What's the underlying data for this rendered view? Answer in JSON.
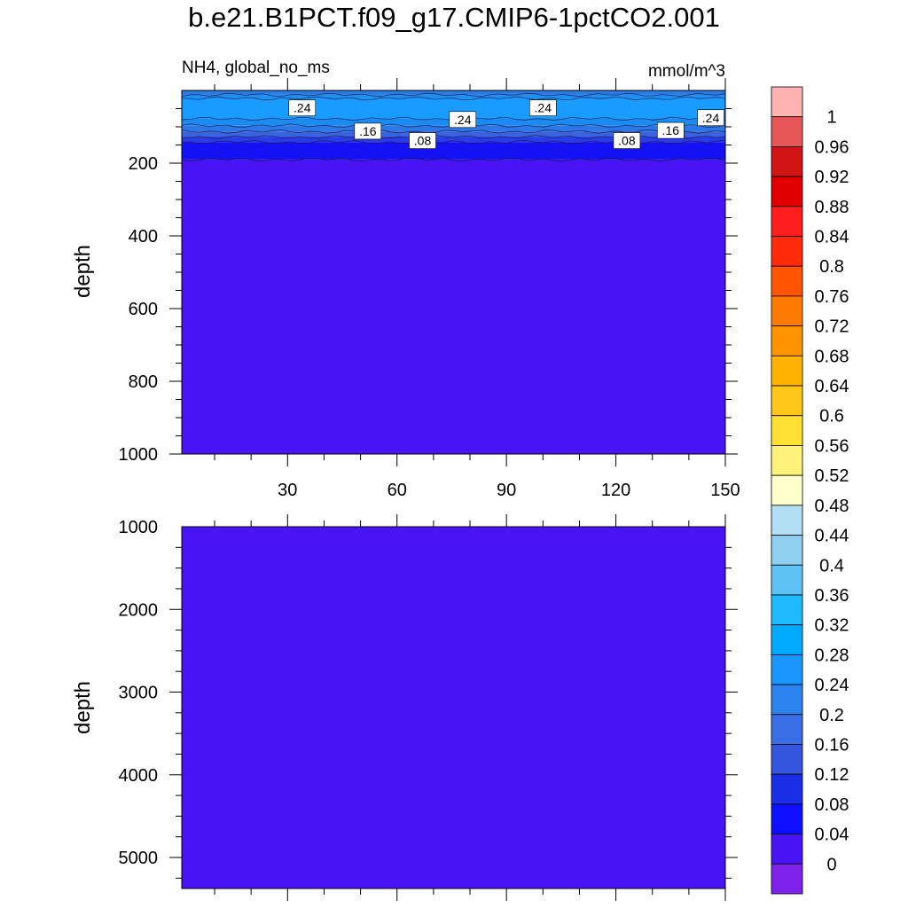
{
  "title": "b.e21.B1PCT.f09_g17.CMIP6-1pctCO2.001",
  "chart_data": {
    "type": "heatmap",
    "subtitle_left": "NH4, global_no_ms",
    "units": "mmol/m^3",
    "xlim": [
      1,
      150
    ],
    "x_ticks": [
      30,
      60,
      90,
      120,
      150
    ],
    "upper_panel": {
      "ylabel": "depth",
      "ylim": [
        0,
        1000
      ],
      "y_ticks": [
        200,
        400,
        600,
        800,
        1000
      ],
      "contour_levels": [
        {
          "from": 0,
          "to": 12,
          "color": "#2b7be6"
        },
        {
          "from": 12,
          "to": 22,
          "color": "#1e8ff5"
        },
        {
          "from": 22,
          "to": 78,
          "color": "#189cff"
        },
        {
          "from": 78,
          "to": 97,
          "color": "#1a8bf2"
        },
        {
          "from": 97,
          "to": 113,
          "color": "#2d78e8"
        },
        {
          "from": 113,
          "to": 128,
          "color": "#3a63e2"
        },
        {
          "from": 128,
          "to": 142,
          "color": "#2a3ce8"
        },
        {
          "from": 142,
          "to": 190,
          "color": "#1212f5"
        },
        {
          "from": 190,
          "to": 1000,
          "color": "#4914f5"
        }
      ],
      "contour_labels": [
        {
          "x": 34,
          "depth": 48,
          "text": ".24"
        },
        {
          "x": 52,
          "depth": 112,
          "text": ".16"
        },
        {
          "x": 67,
          "depth": 138,
          "text": ".08"
        },
        {
          "x": 78,
          "depth": 80,
          "text": ".24"
        },
        {
          "x": 100,
          "depth": 48,
          "text": ".24"
        },
        {
          "x": 123,
          "depth": 138,
          "text": ".08"
        },
        {
          "x": 135,
          "depth": 110,
          "text": ".16"
        },
        {
          "x": 146,
          "depth": 75,
          "text": ".24"
        }
      ]
    },
    "lower_panel": {
      "ylabel": "depth",
      "ylim": [
        1000,
        5375
      ],
      "y_ticks": [
        1000,
        2000,
        3000,
        4000,
        5000
      ],
      "fill_color": "#4914f5"
    },
    "colorbar": {
      "labels": [
        "1",
        "0.96",
        "0.92",
        "0.88",
        "0.84",
        "0.8",
        "0.76",
        "0.72",
        "0.68",
        "0.64",
        "0.6",
        "0.56",
        "0.52",
        "0.48",
        "0.44",
        "0.4",
        "0.36",
        "0.32",
        "0.28",
        "0.24",
        "0.2",
        "0.16",
        "0.12",
        "0.08",
        "0.04",
        "0"
      ],
      "colors_top_to_bottom": [
        "#ffb2b2",
        "#e65656",
        "#d11414",
        "#e00000",
        "#ff1e1e",
        "#ff2a0a",
        "#ff5500",
        "#ff7a00",
        "#ff9400",
        "#ffb300",
        "#ffc71a",
        "#ffe033",
        "#fff27a",
        "#ffffcc",
        "#b3dff5",
        "#8fcff0",
        "#5ec2f5",
        "#1eb9ff",
        "#00aaff",
        "#1996ff",
        "#2b83f0",
        "#3a6ee6",
        "#3355dd",
        "#1a2ee8",
        "#0f0fff",
        "#4914f5",
        "#7f22ec"
      ]
    }
  }
}
